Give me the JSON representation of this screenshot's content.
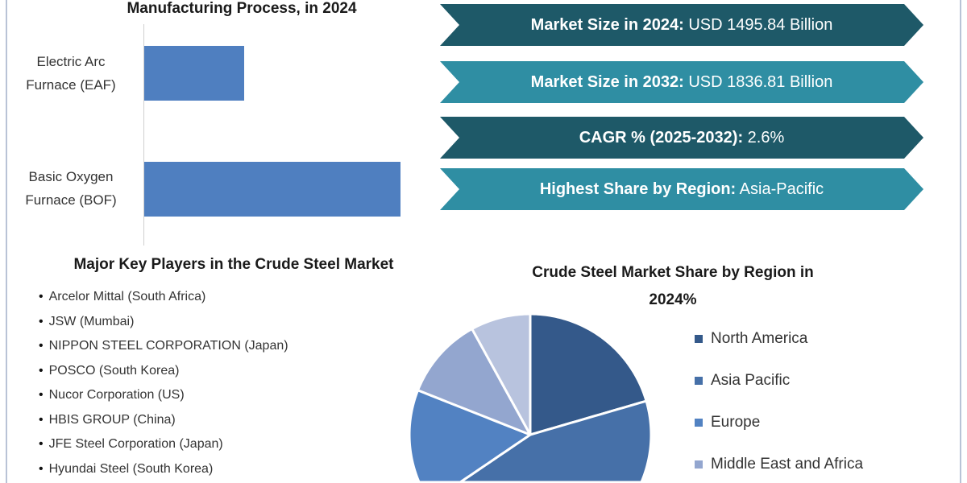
{
  "bar_chart": {
    "title": "Manufacturing Process, in 2024",
    "chart_data": {
      "type": "bar",
      "orientation": "horizontal",
      "categories": [
        "Electric Arc Furnace (EAF)",
        "Basic Oxygen Furnace (BOF)"
      ],
      "category_lines": [
        [
          "Electric Arc",
          "Furnace (EAF)"
        ],
        [
          "Basic Oxygen",
          "Furnace (BOF)"
        ]
      ],
      "values": [
        28,
        72
      ],
      "color": "#4f7fc0",
      "grid": false
    }
  },
  "banners": [
    {
      "label": "Market Size in 2024:",
      "value": " USD 1495.84 Billion",
      "color": "#1e5968"
    },
    {
      "label": "Market Size in 2032:",
      "value": " USD 1836.81 Billion",
      "color": "#2f8ea3"
    },
    {
      "label": "CAGR % (2025-2032):",
      "value": " 2.6%",
      "color": "#1e5968"
    },
    {
      "label": "Highest Share by Region:",
      "value": " Asia-Pacific",
      "color": "#2f8ea3"
    }
  ],
  "players": {
    "title": "Major Key Players in the Crude Steel Market",
    "items": [
      "Arcelor Mittal (South Africa)",
      "JSW (Mumbai)",
      "NIPPON STEEL CORPORATION (Japan)",
      "POSCO (South Korea)",
      "Nucor Corporation (US)",
      "HBIS GROUP (China)",
      "JFE Steel Corporation (Japan)",
      "Hyundai Steel (South Korea)"
    ]
  },
  "pie_chart": {
    "title_line1": "Crude Steel Market Share by Region in",
    "title_line2": "2024%",
    "chart_data": {
      "type": "pie",
      "series": [
        {
          "name": "North America",
          "value": 20.5,
          "color": "#34598a"
        },
        {
          "name": "Asia Pacific",
          "value": 45,
          "color": "#4670a8"
        },
        {
          "name": "Europe",
          "value": 15.5,
          "color": "#5282c2"
        },
        {
          "name": "Middle East and Africa",
          "value": 11,
          "color": "#93a6cf"
        },
        {
          "value": 8,
          "color": "#b8c3de"
        }
      ],
      "legend": "right"
    }
  }
}
